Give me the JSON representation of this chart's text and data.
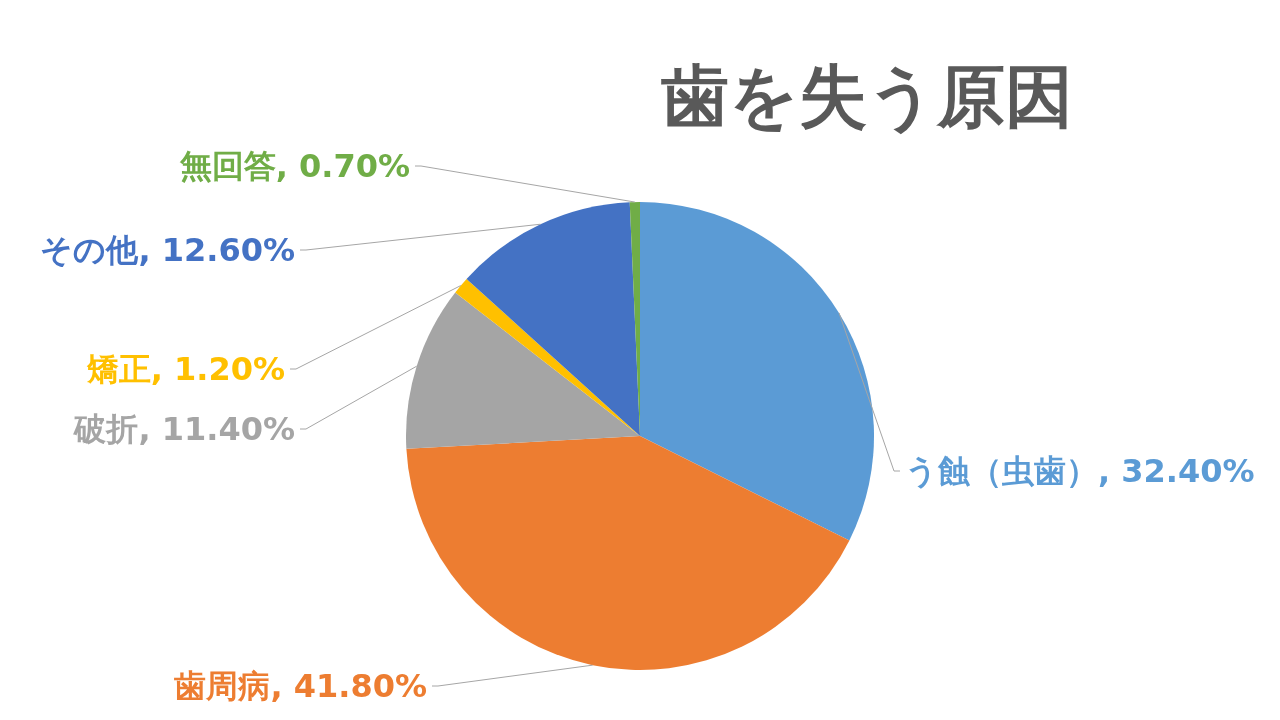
{
  "chart_data": {
    "type": "pie",
    "title": "歯を失う原因",
    "categories": [
      "う蝕（虫歯）",
      "歯周病",
      "破折",
      "矯正",
      "その他",
      "無回答"
    ],
    "values": [
      32.4,
      41.8,
      11.4,
      1.2,
      12.6,
      0.7
    ],
    "colors": [
      "#5b9bd5",
      "#ed7d31",
      "#a5a5a5",
      "#ffc000",
      "#4472c4",
      "#70ad47"
    ],
    "value_labels": [
      "32.40%",
      "41.80%",
      "11.40%",
      "1.20%",
      "12.60%",
      "0.70%"
    ]
  }
}
